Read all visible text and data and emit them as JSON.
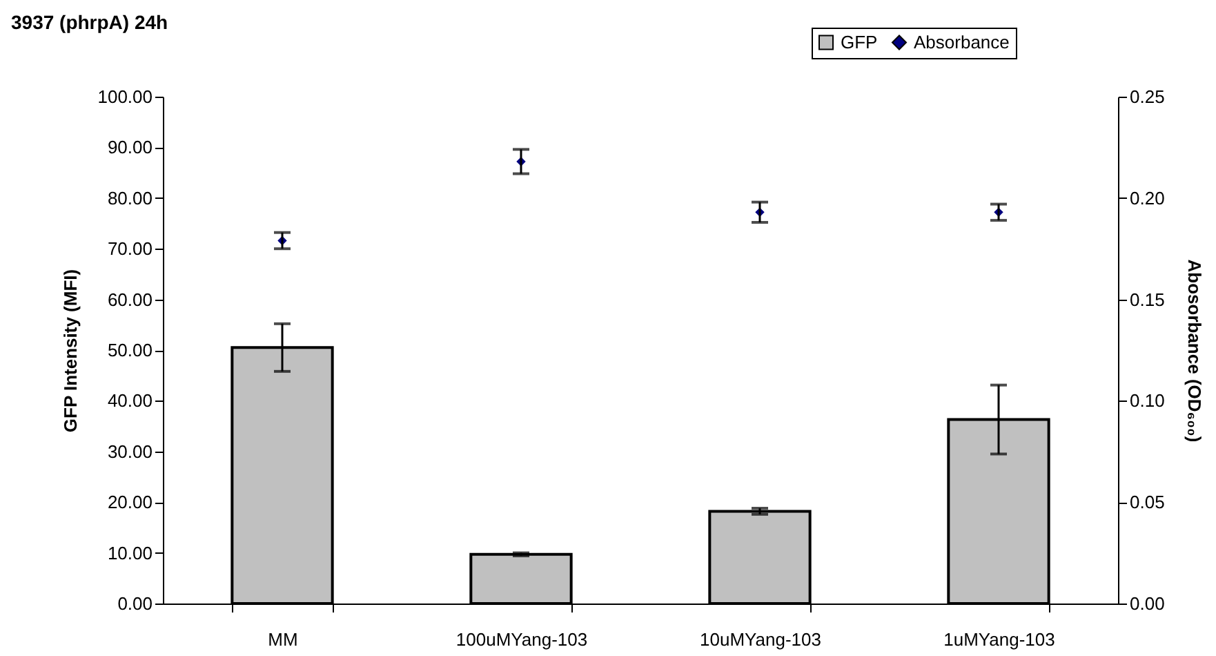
{
  "chart_data": {
    "type": "bar",
    "title": "3937 (phrpA) 24h",
    "ylabel": "GFP Intensity (MFI)",
    "y2label": "Abosorbance (OD₆₀₀)",
    "categories": [
      "MM",
      "100uMYang-103",
      "10uMYang-103",
      "1uMYang-103"
    ],
    "series": [
      {
        "name": "GFP",
        "type": "bar",
        "color": "#c0c0c0",
        "values": [
          50.5,
          9.7,
          18.2,
          36.3
        ],
        "errors": [
          4.7,
          0.3,
          0.6,
          6.8
        ]
      },
      {
        "name": "Absorbance",
        "type": "scatter",
        "axis": "y2",
        "marker": "diamond",
        "color": "#000080",
        "values": [
          0.179,
          0.218,
          0.193,
          0.193
        ],
        "errors": [
          0.004,
          0.006,
          0.005,
          0.004
        ]
      }
    ],
    "ylim": [
      0,
      100
    ],
    "yticks": [
      {
        "value": 0,
        "label": "0.00"
      },
      {
        "value": 10,
        "label": "10.00"
      },
      {
        "value": 20,
        "label": "20.00"
      },
      {
        "value": 30,
        "label": "30.00"
      },
      {
        "value": 40,
        "label": "40.00"
      },
      {
        "value": 50,
        "label": "50.00"
      },
      {
        "value": 60,
        "label": "60.00"
      },
      {
        "value": 70,
        "label": "70.00"
      },
      {
        "value": 80,
        "label": "80.00"
      },
      {
        "value": 90,
        "label": "90.00"
      },
      {
        "value": 100,
        "label": "100.00"
      }
    ],
    "y2lim": [
      0,
      0.25
    ],
    "y2ticks": [
      {
        "value": 0,
        "label": "0.00"
      },
      {
        "value": 0.05,
        "label": "0.05"
      },
      {
        "value": 0.1,
        "label": "0.10"
      },
      {
        "value": 0.15,
        "label": "0.15"
      },
      {
        "value": 0.2,
        "label": "0.20"
      },
      {
        "value": 0.25,
        "label": "0.25"
      }
    ],
    "legend": "top right"
  }
}
